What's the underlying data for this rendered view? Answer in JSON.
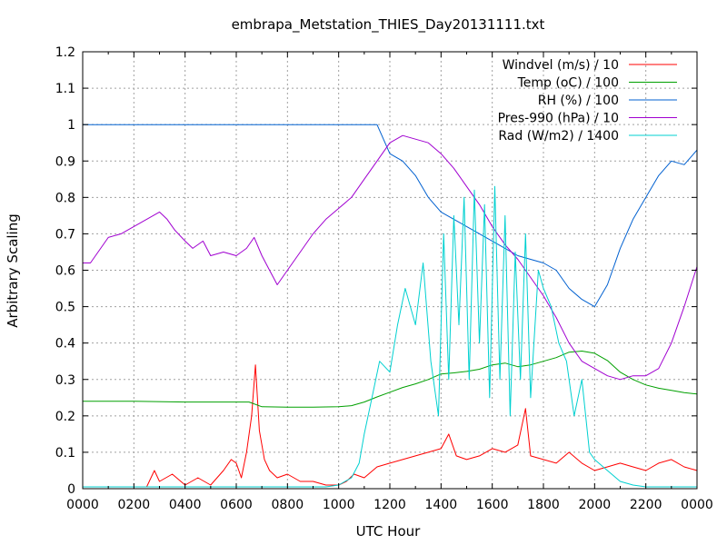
{
  "chart_data": {
    "type": "line",
    "title": "embrapa_Metstation_THIES_Day20131111.txt",
    "xlabel": "UTC Hour",
    "ylabel": "Arbitrary Scaling",
    "xlim": [
      0,
      24
    ],
    "ylim": [
      0,
      1.2
    ],
    "grid": true,
    "legend_position": "top-right",
    "x_tick_labels": [
      "0000",
      "0200",
      "0400",
      "0600",
      "0800",
      "1000",
      "1200",
      "1400",
      "1600",
      "1800",
      "2000",
      "2200",
      "0000"
    ],
    "y_tick_labels": [
      "0",
      "0.1",
      "0.2",
      "0.3",
      "0.4",
      "0.5",
      "0.6",
      "0.7",
      "0.8",
      "0.9",
      "1",
      "1.1",
      "1.2"
    ],
    "series": [
      {
        "name": "Windvel (m/s) / 10",
        "color": "#ff0000",
        "x": [
          0,
          1,
          2,
          2.5,
          2.8,
          3.0,
          3.5,
          4,
          4.5,
          5,
          5.5,
          5.8,
          6,
          6.2,
          6.4,
          6.6,
          6.75,
          6.9,
          7.1,
          7.3,
          7.6,
          8,
          8.5,
          9,
          9.5,
          10,
          10.3,
          10.6,
          11,
          11.5,
          12,
          12.5,
          13,
          13.5,
          14,
          14.3,
          14.6,
          15,
          15.5,
          16,
          16.5,
          17,
          17.3,
          17.5,
          18,
          18.5,
          19,
          19.5,
          20,
          20.5,
          21,
          21.5,
          22,
          22.5,
          23,
          23.5,
          24
        ],
        "y": [
          0.005,
          0.005,
          0.005,
          0.005,
          0.05,
          0.02,
          0.04,
          0.01,
          0.03,
          0.01,
          0.05,
          0.08,
          0.07,
          0.03,
          0.1,
          0.2,
          0.34,
          0.16,
          0.08,
          0.05,
          0.03,
          0.04,
          0.02,
          0.02,
          0.01,
          0.01,
          0.02,
          0.04,
          0.03,
          0.06,
          0.07,
          0.08,
          0.09,
          0.1,
          0.11,
          0.15,
          0.09,
          0.08,
          0.09,
          0.11,
          0.1,
          0.12,
          0.22,
          0.09,
          0.08,
          0.07,
          0.1,
          0.07,
          0.05,
          0.06,
          0.07,
          0.06,
          0.05,
          0.07,
          0.08,
          0.06,
          0.05
        ]
      },
      {
        "name": "Temp (oC) / 100",
        "color": "#00a000",
        "x": [
          0,
          2,
          4,
          6,
          6.5,
          7,
          8,
          9,
          10,
          10.5,
          11,
          11.5,
          12,
          12.5,
          13,
          13.5,
          14,
          14.5,
          15,
          15.5,
          16,
          16.5,
          17,
          17.5,
          18,
          18.5,
          19,
          19.5,
          20,
          20.5,
          21,
          21.5,
          22,
          22.5,
          23,
          23.5,
          24
        ],
        "y": [
          0.24,
          0.24,
          0.238,
          0.238,
          0.238,
          0.225,
          0.224,
          0.224,
          0.225,
          0.228,
          0.238,
          0.252,
          0.265,
          0.278,
          0.288,
          0.3,
          0.315,
          0.318,
          0.322,
          0.328,
          0.34,
          0.345,
          0.335,
          0.34,
          0.35,
          0.36,
          0.375,
          0.378,
          0.372,
          0.352,
          0.32,
          0.3,
          0.285,
          0.276,
          0.27,
          0.264,
          0.26
        ]
      },
      {
        "name": "RH (%) / 100",
        "color": "#0060d0",
        "x": [
          0,
          2,
          4,
          6,
          8,
          10,
          11,
          11.5,
          12,
          12.5,
          13,
          13.5,
          14,
          14.5,
          15,
          15.5,
          16,
          16.5,
          17,
          17.5,
          18,
          18.5,
          19,
          19.5,
          20,
          20.5,
          21,
          21.5,
          22,
          22.5,
          23,
          23.5,
          24
        ],
        "y": [
          1.0,
          1.0,
          1.0,
          1.0,
          1.0,
          1.0,
          1.0,
          1.0,
          0.92,
          0.9,
          0.86,
          0.8,
          0.76,
          0.74,
          0.72,
          0.7,
          0.68,
          0.66,
          0.64,
          0.63,
          0.62,
          0.6,
          0.55,
          0.52,
          0.5,
          0.56,
          0.66,
          0.74,
          0.8,
          0.86,
          0.9,
          0.89,
          0.93
        ]
      },
      {
        "name": "Pres-990 (hPa) / 10",
        "color": "#a000d0",
        "x": [
          0,
          0.3,
          1,
          1.5,
          2,
          2.5,
          3,
          3.3,
          3.6,
          4,
          4.3,
          4.7,
          5,
          5.5,
          6,
          6.4,
          6.7,
          7,
          7.3,
          7.6,
          8,
          8.5,
          9,
          9.5,
          10,
          10.5,
          11,
          11.5,
          12,
          12.5,
          13,
          13.5,
          14,
          14.5,
          15,
          15.5,
          16,
          16.5,
          17,
          17.5,
          18,
          18.5,
          19,
          19.5,
          20,
          20.5,
          21,
          21.5,
          22,
          22.5,
          23,
          23.5,
          24
        ],
        "y": [
          0.62,
          0.62,
          0.69,
          0.7,
          0.72,
          0.74,
          0.76,
          0.74,
          0.71,
          0.68,
          0.66,
          0.68,
          0.64,
          0.65,
          0.64,
          0.66,
          0.69,
          0.64,
          0.6,
          0.56,
          0.6,
          0.65,
          0.7,
          0.74,
          0.77,
          0.8,
          0.85,
          0.9,
          0.95,
          0.97,
          0.96,
          0.95,
          0.92,
          0.88,
          0.83,
          0.78,
          0.72,
          0.67,
          0.63,
          0.58,
          0.53,
          0.47,
          0.4,
          0.35,
          0.33,
          0.31,
          0.3,
          0.31,
          0.31,
          0.33,
          0.4,
          0.5,
          0.61
        ]
      },
      {
        "name": "Rad (W/m2) / 1400",
        "color": "#00d0d0",
        "x": [
          0,
          2,
          4,
          6,
          8,
          9.5,
          10,
          10.5,
          10.8,
          11,
          11.3,
          11.6,
          12,
          12.3,
          12.6,
          13,
          13.3,
          13.6,
          13.9,
          14.1,
          14.3,
          14.5,
          14.7,
          14.9,
          15.1,
          15.3,
          15.5,
          15.7,
          15.9,
          16.1,
          16.3,
          16.5,
          16.7,
          16.9,
          17.1,
          17.3,
          17.5,
          17.8,
          18,
          18.3,
          18.6,
          18.9,
          19.2,
          19.5,
          19.8,
          20,
          20.5,
          21,
          21.5,
          22,
          23,
          24
        ],
        "y": [
          0.005,
          0.005,
          0.005,
          0.005,
          0.005,
          0.005,
          0.01,
          0.03,
          0.07,
          0.15,
          0.25,
          0.35,
          0.32,
          0.45,
          0.55,
          0.45,
          0.62,
          0.35,
          0.2,
          0.7,
          0.3,
          0.75,
          0.45,
          0.8,
          0.3,
          0.82,
          0.4,
          0.78,
          0.25,
          0.83,
          0.3,
          0.75,
          0.2,
          0.65,
          0.3,
          0.7,
          0.25,
          0.6,
          0.55,
          0.5,
          0.4,
          0.35,
          0.2,
          0.3,
          0.1,
          0.08,
          0.05,
          0.02,
          0.01,
          0.005,
          0.005,
          0.005
        ]
      }
    ]
  }
}
